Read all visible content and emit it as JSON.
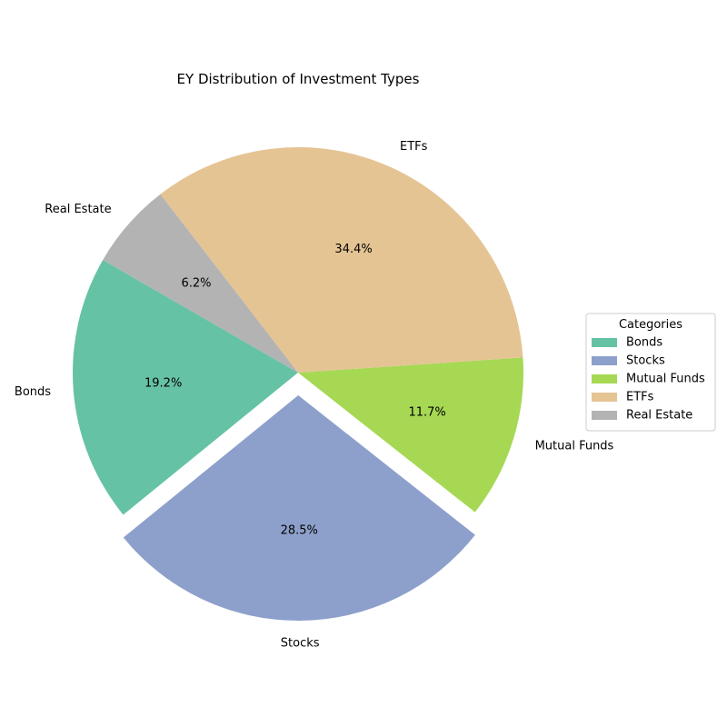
{
  "chart_data": {
    "type": "pie",
    "title": "EY Distribution of Investment Types",
    "categories": [
      "Bonds",
      "Stocks",
      "Mutual Funds",
      "ETFs",
      "Real Estate"
    ],
    "values": [
      19.2,
      28.5,
      11.7,
      34.4,
      6.2
    ],
    "percent_labels": [
      "19.2%",
      "28.5%",
      "11.7%",
      "34.4%",
      "6.2%"
    ],
    "colors": [
      "#66c2a5",
      "#8da0cb",
      "#a6d854",
      "#e5c494",
      "#b3b3b3"
    ],
    "exploded": [
      false,
      true,
      false,
      false,
      false
    ],
    "start_angle_deg": 150,
    "legend": {
      "title": "Categories",
      "placement": "center-right"
    }
  }
}
